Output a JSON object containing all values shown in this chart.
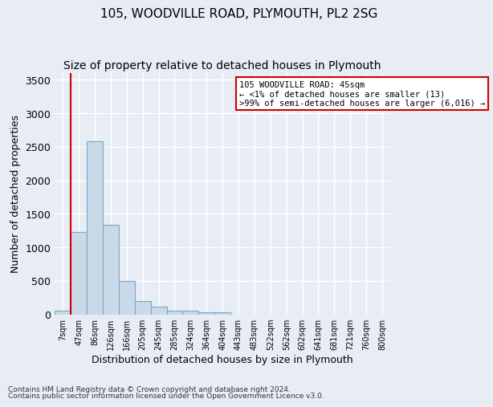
{
  "title1": "105, WOODVILLE ROAD, PLYMOUTH, PL2 2SG",
  "title2": "Size of property relative to detached houses in Plymouth",
  "xlabel": "Distribution of detached houses by size in Plymouth",
  "ylabel": "Number of detached properties",
  "bar_labels": [
    "7sqm",
    "47sqm",
    "86sqm",
    "126sqm",
    "166sqm",
    "205sqm",
    "245sqm",
    "285sqm",
    "324sqm",
    "364sqm",
    "404sqm",
    "443sqm",
    "483sqm",
    "522sqm",
    "562sqm",
    "602sqm",
    "641sqm",
    "681sqm",
    "721sqm",
    "760sqm",
    "800sqm"
  ],
  "bar_values": [
    50,
    1230,
    2580,
    1340,
    500,
    200,
    110,
    50,
    50,
    30,
    30,
    0,
    0,
    0,
    0,
    0,
    0,
    0,
    0,
    0,
    0
  ],
  "bar_color": "#c9d9e8",
  "bar_edgecolor": "#7aa8cc",
  "ylim": [
    0,
    3600
  ],
  "yticks": [
    0,
    500,
    1000,
    1500,
    2000,
    2500,
    3000,
    3500
  ],
  "red_line_x": 0.5,
  "annotation_line1": "105 WOODVILLE ROAD: 45sqm",
  "annotation_line2": "← <1% of detached houses are smaller (13)",
  "annotation_line3": ">99% of semi-detached houses are larger (6,016) →",
  "annotation_box_color": "#ffffff",
  "annotation_border_color": "#cc0000",
  "footer1": "Contains HM Land Registry data © Crown copyright and database right 2024.",
  "footer2": "Contains public sector information licensed under the Open Government Licence v3.0.",
  "bg_color": "#e8edf5",
  "plot_bg_color": "#e8edf5",
  "grid_color": "#ffffff",
  "title1_fontsize": 11,
  "title2_fontsize": 10
}
